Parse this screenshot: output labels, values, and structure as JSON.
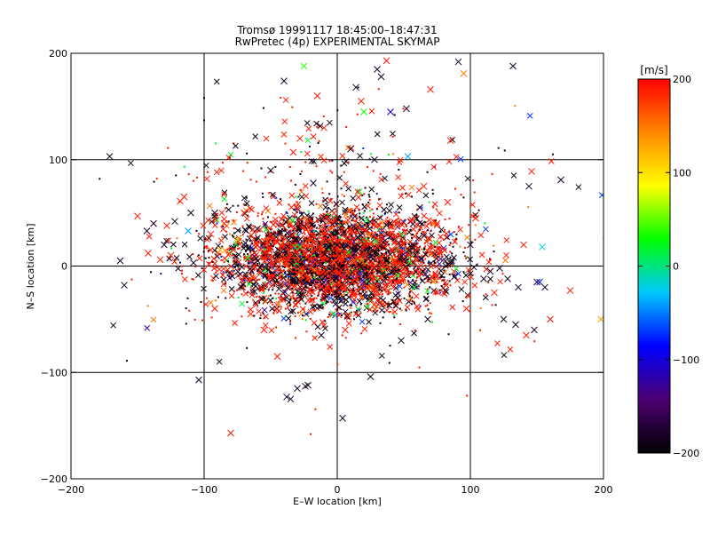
{
  "chart_data": {
    "type": "scatter",
    "title": "Tromsø 19991117 18:45:00–18:47:31",
    "subtitle": "RwPretec (4p) EXPERIMENTAL SKYMAP",
    "xlabel": "E–W location [km]",
    "ylabel": "N–S location [km]",
    "xlim": [
      -200,
      200
    ],
    "ylim": [
      -200,
      200
    ],
    "xticks": [
      -200,
      -100,
      0,
      100,
      200
    ],
    "yticks": [
      -200,
      -100,
      0,
      100,
      200
    ],
    "xtick_labels": [
      "−200",
      "−100",
      "0",
      "100",
      "200"
    ],
    "ytick_labels": [
      "−200",
      "−100",
      "0",
      "100",
      "200"
    ],
    "grid": true,
    "colorbar": {
      "label": "[m/s]",
      "range": [
        -200,
        200
      ],
      "ticks": [
        200,
        100,
        0,
        -100,
        -200
      ],
      "tick_labels": [
        "200",
        "100",
        "0",
        "−100",
        "−200"
      ]
    },
    "color_stops": [
      "#000000",
      "#4b0070",
      "#0000ff",
      "#00c8ff",
      "#00ff00",
      "#ffff00",
      "#ff8800",
      "#ff0000"
    ],
    "markers": [
      {
        "x": -171,
        "y": 103,
        "v": -180,
        "m": "x"
      },
      {
        "x": -163,
        "y": 5,
        "v": -180,
        "m": "x"
      },
      {
        "x": -160,
        "y": -18,
        "v": -180,
        "m": "x"
      },
      {
        "x": -158,
        "y": -89,
        "v": -180,
        "m": "dot"
      },
      {
        "x": -150,
        "y": 47,
        "v": 190,
        "m": "x"
      },
      {
        "x": -143,
        "y": 33,
        "v": -180,
        "m": "x"
      },
      {
        "x": -142,
        "y": 12,
        "v": 190,
        "m": "x"
      },
      {
        "x": -138,
        "y": 40,
        "v": -180,
        "m": "x"
      },
      {
        "x": -133,
        "y": 6,
        "v": 190,
        "m": "x"
      },
      {
        "x": -130,
        "y": 20,
        "v": -180,
        "m": "x"
      },
      {
        "x": -128,
        "y": 38,
        "v": 190,
        "m": "x"
      },
      {
        "x": -125,
        "y": 10,
        "v": 190,
        "m": "x"
      },
      {
        "x": -122,
        "y": 42,
        "v": -180,
        "m": "x"
      },
      {
        "x": -118,
        "y": 61,
        "v": 190,
        "m": "x"
      },
      {
        "x": -115,
        "y": 65,
        "v": 190,
        "m": "x"
      },
      {
        "x": -112,
        "y": 33,
        "v": -40,
        "m": "x"
      },
      {
        "x": -110,
        "y": 50,
        "v": -180,
        "m": "x"
      },
      {
        "x": -108,
        "y": 3,
        "v": -180,
        "m": "x"
      },
      {
        "x": -104,
        "y": -107,
        "v": -180,
        "m": "x"
      },
      {
        "x": -100,
        "y": 158,
        "v": -180,
        "m": "dot"
      },
      {
        "x": -100,
        "y": 137,
        "v": -180,
        "m": "dot"
      },
      {
        "x": -98,
        "y": 82,
        "v": 190,
        "m": "x"
      },
      {
        "x": -95,
        "y": 30,
        "v": 190,
        "m": "x"
      },
      {
        "x": -92,
        "y": 50,
        "v": -180,
        "m": "x"
      },
      {
        "x": -92,
        "y": -40,
        "v": 190,
        "m": "x"
      },
      {
        "x": -88,
        "y": 15,
        "v": 120,
        "m": "x"
      },
      {
        "x": -85,
        "y": 40,
        "v": 190,
        "m": "x"
      },
      {
        "x": -80,
        "y": -157,
        "v": 190,
        "m": "x"
      },
      {
        "x": -75,
        "y": 25,
        "v": 60,
        "m": "x"
      },
      {
        "x": -72,
        "y": -20,
        "v": -180,
        "m": "x"
      },
      {
        "x": -70,
        "y": 50,
        "v": 190,
        "m": "x"
      },
      {
        "x": -65,
        "y": -45,
        "v": 190,
        "m": "x"
      },
      {
        "x": -60,
        "y": 35,
        "v": -180,
        "m": "x"
      },
      {
        "x": -55,
        "y": -60,
        "v": 190,
        "m": "x"
      },
      {
        "x": -50,
        "y": 90,
        "v": -180,
        "m": "x"
      },
      {
        "x": -45,
        "y": -85,
        "v": 190,
        "m": "x"
      },
      {
        "x": -40,
        "y": 174,
        "v": -180,
        "m": "x"
      },
      {
        "x": -38,
        "y": -123,
        "v": -180,
        "m": "x"
      },
      {
        "x": -35,
        "y": -125,
        "v": -180,
        "m": "x"
      },
      {
        "x": -33,
        "y": 107,
        "v": 190,
        "m": "x"
      },
      {
        "x": -30,
        "y": -115,
        "v": -180,
        "m": "x"
      },
      {
        "x": -28,
        "y": 120,
        "v": 190,
        "m": "x"
      },
      {
        "x": -25,
        "y": 188,
        "v": 40,
        "m": "x"
      },
      {
        "x": -24,
        "y": -113,
        "v": -180,
        "m": "x"
      },
      {
        "x": -22,
        "y": -112,
        "v": -180,
        "m": "x"
      },
      {
        "x": -20,
        "y": -158,
        "v": 190,
        "m": "dot"
      },
      {
        "x": -18,
        "y": 78,
        "v": -180,
        "m": "x"
      },
      {
        "x": -15,
        "y": 160,
        "v": 190,
        "m": "x"
      },
      {
        "x": -12,
        "y": -65,
        "v": -180,
        "m": "x"
      },
      {
        "x": -10,
        "y": 130,
        "v": 190,
        "m": "x"
      },
      {
        "x": -5,
        "y": -30,
        "v": -60,
        "m": "x"
      },
      {
        "x": -3,
        "y": -45,
        "v": 10,
        "m": "x"
      },
      {
        "x": 0,
        "y": 20,
        "v": -180,
        "m": "x"
      },
      {
        "x": 2,
        "y": 8,
        "v": 190,
        "m": "x"
      },
      {
        "x": 4,
        "y": -143,
        "v": -180,
        "m": "x"
      },
      {
        "x": 6,
        "y": -60,
        "v": 190,
        "m": "x"
      },
      {
        "x": 8,
        "y": 43,
        "v": 190,
        "m": "x"
      },
      {
        "x": 10,
        "y": 110,
        "v": -180,
        "m": "x"
      },
      {
        "x": 14,
        "y": 168,
        "v": -180,
        "m": "x"
      },
      {
        "x": 18,
        "y": 155,
        "v": 190,
        "m": "x"
      },
      {
        "x": 20,
        "y": -15,
        "v": -140,
        "m": "x"
      },
      {
        "x": 20,
        "y": 145,
        "v": 30,
        "m": "x"
      },
      {
        "x": 25,
        "y": -104,
        "v": -180,
        "m": "x"
      },
      {
        "x": 28,
        "y": 100,
        "v": -180,
        "m": "x"
      },
      {
        "x": 30,
        "y": 185,
        "v": -180,
        "m": "x"
      },
      {
        "x": 33,
        "y": 178,
        "v": -180,
        "m": "x"
      },
      {
        "x": 37,
        "y": 193,
        "v": 190,
        "m": "x"
      },
      {
        "x": 40,
        "y": 145,
        "v": -100,
        "m": "x"
      },
      {
        "x": 45,
        "y": 40,
        "v": 190,
        "m": "x"
      },
      {
        "x": 48,
        "y": -70,
        "v": -180,
        "m": "x"
      },
      {
        "x": 52,
        "y": 148,
        "v": -180,
        "m": "x"
      },
      {
        "x": 53,
        "y": 103,
        "v": -40,
        "m": "x"
      },
      {
        "x": 58,
        "y": -20,
        "v": 20,
        "m": "x"
      },
      {
        "x": 62,
        "y": 55,
        "v": -180,
        "m": "x"
      },
      {
        "x": 65,
        "y": 75,
        "v": 190,
        "m": "x"
      },
      {
        "x": 68,
        "y": -50,
        "v": -180,
        "m": "x"
      },
      {
        "x": 70,
        "y": 166,
        "v": 190,
        "m": "x"
      },
      {
        "x": 75,
        "y": 40,
        "v": 190,
        "m": "x"
      },
      {
        "x": 80,
        "y": -25,
        "v": 190,
        "m": "x"
      },
      {
        "x": 83,
        "y": 60,
        "v": 190,
        "m": "x"
      },
      {
        "x": 85,
        "y": 118,
        "v": 190,
        "m": "x"
      },
      {
        "x": 88,
        "y": -10,
        "v": -180,
        "m": "x"
      },
      {
        "x": 91,
        "y": 192,
        "v": -180,
        "m": "x"
      },
      {
        "x": 95,
        "y": 181,
        "v": 150,
        "m": "x"
      },
      {
        "x": 97,
        "y": -40,
        "v": 190,
        "m": "x"
      },
      {
        "x": 100,
        "y": 20,
        "v": -180,
        "m": "x"
      },
      {
        "x": 104,
        "y": 45,
        "v": 190,
        "m": "x"
      },
      {
        "x": 110,
        "y": -12,
        "v": -180,
        "m": "x"
      },
      {
        "x": 115,
        "y": -5,
        "v": -180,
        "m": "x"
      },
      {
        "x": 118,
        "y": -25,
        "v": 190,
        "m": "x"
      },
      {
        "x": 122,
        "y": -2,
        "v": -180,
        "m": "x"
      },
      {
        "x": 125,
        "y": -50,
        "v": -180,
        "m": "x"
      },
      {
        "x": 128,
        "y": -12,
        "v": -180,
        "m": "x"
      },
      {
        "x": 132,
        "y": 188,
        "v": -180,
        "m": "x"
      },
      {
        "x": 134,
        "y": -55,
        "v": -180,
        "m": "x"
      },
      {
        "x": 136,
        "y": -20,
        "v": -180,
        "m": "x"
      },
      {
        "x": 140,
        "y": 20,
        "v": 190,
        "m": "x"
      },
      {
        "x": 142,
        "y": -65,
        "v": 190,
        "m": "x"
      },
      {
        "x": 144,
        "y": 75,
        "v": -180,
        "m": "x"
      },
      {
        "x": 146,
        "y": 89,
        "v": 190,
        "m": "x"
      },
      {
        "x": 148,
        "y": -60,
        "v": -180,
        "m": "x"
      },
      {
        "x": 150,
        "y": -15,
        "v": -180,
        "m": "x"
      },
      {
        "x": 152,
        "y": -15,
        "v": -80,
        "m": "x"
      },
      {
        "x": 154,
        "y": 18,
        "v": -20,
        "m": "x"
      },
      {
        "x": 156,
        "y": -20,
        "v": -180,
        "m": "x"
      },
      {
        "x": 160,
        "y": -50,
        "v": 190,
        "m": "x"
      },
      {
        "x": 162,
        "y": 105,
        "v": -180,
        "m": "dot"
      },
      {
        "x": 168,
        "y": 81,
        "v": -180,
        "m": "x"
      },
      {
        "x": 175,
        "y": -23,
        "v": 190,
        "m": "x"
      },
      {
        "x": 198,
        "y": -50,
        "v": 130,
        "m": "x"
      }
    ],
    "cluster": {
      "center": [
        0,
        5
      ],
      "spread_km": [
        42,
        24
      ],
      "count": 3600,
      "seed": 1999
    },
    "halo": {
      "center": [
        -5,
        40
      ],
      "spread_km": [
        70,
        55
      ],
      "count": 420,
      "seed": 1117
    }
  }
}
